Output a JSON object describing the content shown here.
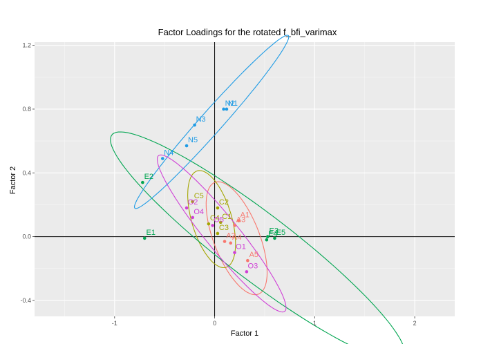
{
  "chart_data": {
    "type": "scatter",
    "title": "Factor Loadings for the rotated f_bfi_varimax",
    "xlabel": "Factor 1",
    "ylabel": "Factor 2",
    "xlim": [
      -1.8,
      2.4
    ],
    "ylim": [
      -0.5,
      1.22
    ],
    "x_ticks": [
      -1,
      0,
      1,
      2
    ],
    "x_tick_labels": [
      "-1",
      "0",
      "1",
      "2"
    ],
    "y_ticks": [
      -0.4,
      0.0,
      0.4,
      0.8,
      1.2
    ],
    "y_tick_labels": [
      "-0.4",
      "0.0",
      "0.4",
      "0.8",
      "1.2"
    ],
    "grid": true,
    "legend": "none",
    "reference_lines": {
      "x": 0,
      "y": 0
    },
    "colors": {
      "A": "#f8766d",
      "C": "#a3a500",
      "E": "#00a550",
      "N": "#1e9be5",
      "O": "#cf40d6"
    },
    "series": [
      {
        "group": "A",
        "points": [
          {
            "label": "A1",
            "x": 0.24,
            "y": 0.1
          },
          {
            "label": "A2",
            "x": 0.1,
            "y": -0.03
          },
          {
            "label": "A3",
            "x": 0.2,
            "y": 0.07
          },
          {
            "label": "A4",
            "x": 0.16,
            "y": -0.04
          },
          {
            "label": "A5",
            "x": 0.33,
            "y": -0.15
          }
        ],
        "ellipse": {
          "cx": 0.22,
          "cy": -0.01,
          "rx": 0.42,
          "ry": 0.205,
          "angle": -52
        }
      },
      {
        "group": "C",
        "points": [
          {
            "label": "C1",
            "x": 0.06,
            "y": 0.09
          },
          {
            "label": "C2",
            "x": 0.03,
            "y": 0.18
          },
          {
            "label": "C3",
            "x": 0.03,
            "y": 0.02
          },
          {
            "label": "C4",
            "x": -0.06,
            "y": 0.08
          },
          {
            "label": "C5",
            "x": -0.22,
            "y": 0.22
          }
        ],
        "ellipse": {
          "cx": -0.03,
          "cy": 0.11,
          "rx": 0.34,
          "ry": 0.185,
          "angle": -58
        }
      },
      {
        "group": "E",
        "points": [
          {
            "label": "E1",
            "x": -0.7,
            "y": -0.01
          },
          {
            "label": "E2",
            "x": -0.72,
            "y": 0.34
          },
          {
            "label": "E3",
            "x": 0.53,
            "y": 0.0
          },
          {
            "label": "E4",
            "x": 0.52,
            "y": -0.02
          },
          {
            "label": "E5",
            "x": 0.6,
            "y": -0.01
          }
        ],
        "ellipse": {
          "cx": 0.43,
          "cy": -0.06,
          "rx": 1.62,
          "ry": 0.235,
          "angle": -25
        }
      },
      {
        "group": "N",
        "points": [
          {
            "label": "N1",
            "x": 0.12,
            "y": 0.8
          },
          {
            "label": "N2",
            "x": 0.09,
            "y": 0.8
          },
          {
            "label": "N3",
            "x": -0.2,
            "y": 0.7
          },
          {
            "label": "N4",
            "x": -0.52,
            "y": 0.49
          },
          {
            "label": "N5",
            "x": -0.28,
            "y": 0.57
          }
        ],
        "ellipse": {
          "cx": -0.03,
          "cy": 0.72,
          "rx": 0.94,
          "ry": 0.085,
          "angle": 35
        }
      },
      {
        "group": "O",
        "points": [
          {
            "label": "O1",
            "x": 0.2,
            "y": -0.1
          },
          {
            "label": "O2",
            "x": -0.28,
            "y": 0.18
          },
          {
            "label": "O3",
            "x": 0.32,
            "y": -0.22
          },
          {
            "label": "O4",
            "x": -0.22,
            "y": 0.12
          },
          {
            "label": "O5",
            "x": -0.02,
            "y": 0.07
          }
        ],
        "ellipse": {
          "cx": 0.07,
          "cy": 0.02,
          "rx": 0.8,
          "ry": 0.13,
          "angle": -37
        }
      }
    ]
  }
}
